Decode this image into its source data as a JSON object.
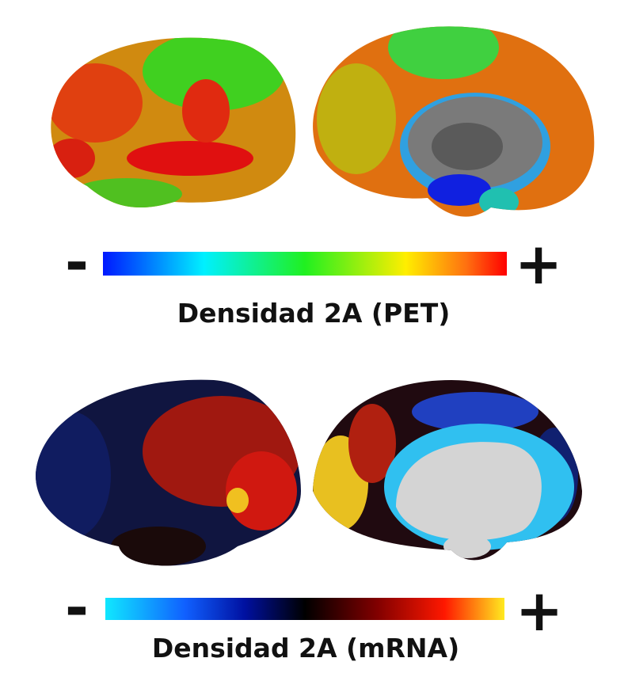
{
  "panels": [
    {
      "minus": "-",
      "plus": "+",
      "label": "Densidad 2A (PET)"
    },
    {
      "minus": "-",
      "plus": "+",
      "label": "Densidad 2A (mRNA)"
    }
  ]
}
